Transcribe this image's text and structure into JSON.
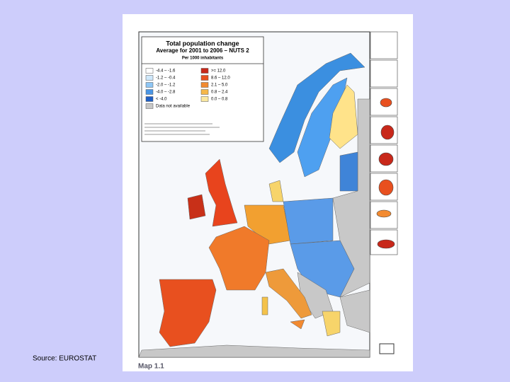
{
  "slide": {
    "source": "Source: EUROSTAT"
  },
  "map": {
    "caption": "Map 1.1",
    "title": "Total population change",
    "subtitle": "Average for 2001 to 2006 – NUTS 2",
    "unit": "Per 1000 inhabitants",
    "legend": [
      {
        "label": "-4.4 – -1.6",
        "color": "#ffffff"
      },
      {
        "label": "-1.2 – -0.4",
        "color": "#cfe8fb"
      },
      {
        "label": "-2.0 – -1.2",
        "color": "#8ec6f5"
      },
      {
        "label": "-4.0 – -2.8",
        "color": "#4a96e6"
      },
      {
        "label": "< -4.0",
        "color": "#1f5fc4"
      },
      {
        "label": "Data not available",
        "color": "#c8c8c8"
      },
      {
        "label": ">= 12.0",
        "color": "#c8281a"
      },
      {
        "label": "8.6 – 12.0",
        "color": "#e8501f"
      },
      {
        "label": "2.1 – 5.0",
        "color": "#f28a30"
      },
      {
        "label": "0.8 – 2.4",
        "color": "#f6b84a"
      },
      {
        "label": "0.0 – 0.8",
        "color": "#fbe8a0"
      }
    ]
  }
}
